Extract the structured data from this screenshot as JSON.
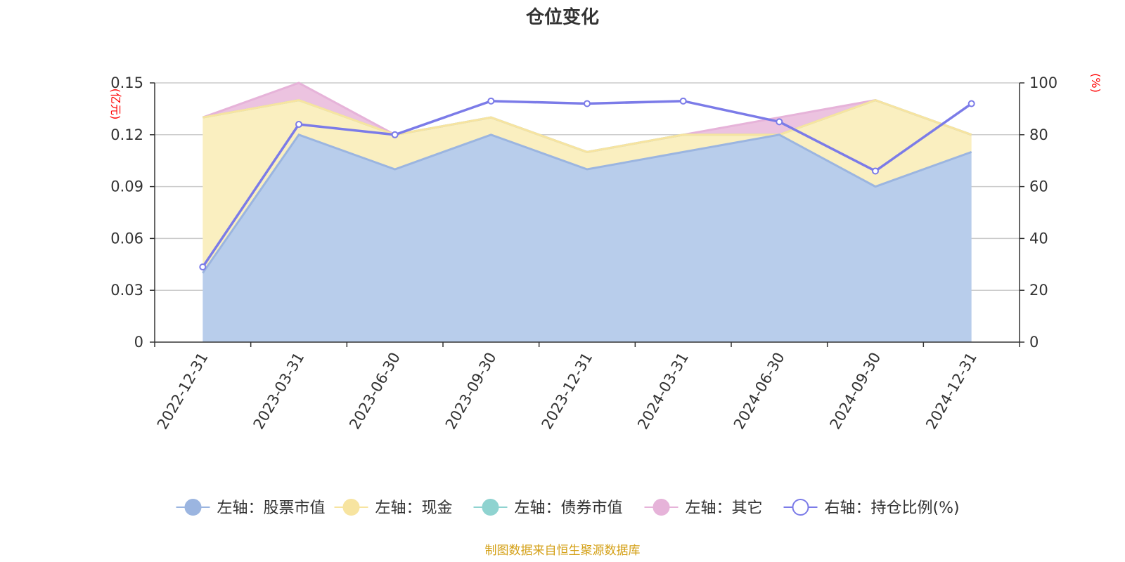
{
  "chart_data": {
    "type": "area",
    "title": "仓位变化",
    "categories": [
      "2022-12-31",
      "2023-03-31",
      "2023-06-30",
      "2023-09-30",
      "2023-12-31",
      "2024-03-31",
      "2024-06-30",
      "2024-09-30",
      "2024-12-31"
    ],
    "left_axis": {
      "unit": "(亿元)",
      "ylim": [
        0,
        0.15
      ],
      "ticks": [
        "0",
        "0.03",
        "0.06",
        "0.09",
        "0.12",
        "0.15"
      ]
    },
    "right_axis": {
      "unit": "(%)",
      "ylim": [
        0,
        100
      ],
      "ticks": [
        "0",
        "20",
        "40",
        "60",
        "80",
        "100"
      ]
    },
    "stacked_series": [
      {
        "name": "左轴：股票市值",
        "color": "#9bb5e0",
        "fill": "#b8cdeb",
        "values": [
          0.04,
          0.12,
          0.1,
          0.12,
          0.1,
          0.11,
          0.12,
          0.09,
          0.11
        ]
      },
      {
        "name": "左轴：现金",
        "color": "#f7e4a0",
        "fill": "#faefc0",
        "values": [
          0.09,
          0.02,
          0.02,
          0.01,
          0.01,
          0.01,
          0.0,
          0.05,
          0.01
        ]
      },
      {
        "name": "左轴：债券市值",
        "color": "#8fd3d0",
        "fill": "#b5e2df",
        "values": [
          0.0,
          0.0,
          0.0,
          0.0,
          0.0,
          0.0,
          0.0,
          0.0,
          0.0
        ]
      },
      {
        "name": "左轴：其它",
        "color": "#e6b3d9",
        "fill": "#ecc3e0",
        "values": [
          0.0,
          0.01,
          0.0,
          0.0,
          0.0,
          0.0,
          0.01,
          0.0,
          0.0
        ]
      }
    ],
    "line_series": {
      "name": "右轴：持仓比例(%)",
      "color": "#7b7be8",
      "values": [
        29,
        84,
        80,
        93,
        92,
        93,
        85,
        66,
        92
      ]
    },
    "grid": true,
    "legend_position": "bottom",
    "source_note": "制图数据来自恒生聚源数据库"
  }
}
